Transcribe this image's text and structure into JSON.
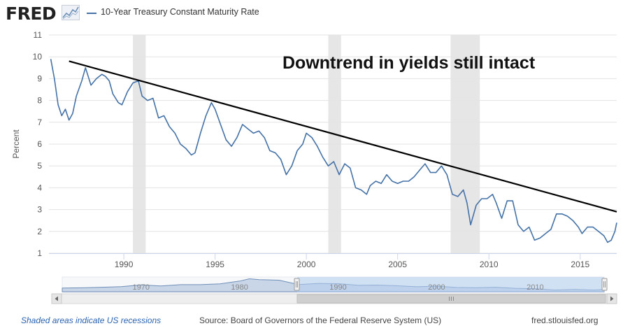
{
  "header": {
    "logo": "FRED",
    "legend_label": "10-Year Treasury Constant Maturity Rate",
    "series_color": "#4572a7"
  },
  "footer": {
    "recession_note": "Shaded areas indicate US recessions",
    "source": "Source: Board of Governors of the Federal Reserve System (US)",
    "site": "fred.stlouisfed.org"
  },
  "chart_data": {
    "type": "line",
    "title": "",
    "annotation": "Downtrend in yields still intact",
    "xlabel": "",
    "ylabel": "Percent",
    "xlim": [
      1985.9,
      2017.0
    ],
    "ylim": [
      1,
      11
    ],
    "grid": true,
    "y_ticks": [
      "1",
      "2",
      "3",
      "4",
      "5",
      "6",
      "7",
      "8",
      "9",
      "10",
      "11"
    ],
    "x_ticks": [
      "1990",
      "1995",
      "2000",
      "2005",
      "2010",
      "2015"
    ],
    "recessions": [
      [
        1990.5,
        1991.2
      ],
      [
        2001.2,
        2001.9
      ],
      [
        2007.9,
        2009.5
      ]
    ],
    "trendline": {
      "x": [
        1987.0,
        2017.0
      ],
      "y": [
        9.8,
        2.9
      ]
    },
    "series": [
      {
        "name": "10-Year Treasury Constant Maturity Rate",
        "x": [
          1986.0,
          1986.2,
          1986.4,
          1986.6,
          1986.8,
          1987.0,
          1987.2,
          1987.4,
          1987.7,
          1987.9,
          1988.2,
          1988.5,
          1988.8,
          1989.0,
          1989.2,
          1989.4,
          1989.7,
          1989.9,
          1990.2,
          1990.5,
          1990.8,
          1991.0,
          1991.3,
          1991.6,
          1991.9,
          1992.2,
          1992.5,
          1992.8,
          1993.1,
          1993.4,
          1993.7,
          1993.9,
          1994.2,
          1994.5,
          1994.8,
          1995.0,
          1995.3,
          1995.6,
          1995.9,
          1996.2,
          1996.5,
          1996.8,
          1997.1,
          1997.4,
          1997.7,
          1998.0,
          1998.3,
          1998.6,
          1998.9,
          1999.2,
          1999.5,
          1999.8,
          2000.0,
          2000.3,
          2000.6,
          2000.9,
          2001.2,
          2001.5,
          2001.8,
          2002.1,
          2002.4,
          2002.7,
          2003.0,
          2003.3,
          2003.5,
          2003.8,
          2004.1,
          2004.4,
          2004.7,
          2005.0,
          2005.3,
          2005.6,
          2005.9,
          2006.2,
          2006.5,
          2006.8,
          2007.1,
          2007.4,
          2007.7,
          2008.0,
          2008.3,
          2008.6,
          2008.8,
          2009.0,
          2009.3,
          2009.6,
          2009.9,
          2010.2,
          2010.4,
          2010.7,
          2011.0,
          2011.3,
          2011.6,
          2011.9,
          2012.2,
          2012.5,
          2012.8,
          2013.1,
          2013.4,
          2013.7,
          2014.0,
          2014.3,
          2014.6,
          2014.9,
          2015.1,
          2015.4,
          2015.7,
          2016.0,
          2016.3,
          2016.5,
          2016.7,
          2016.9,
          2017.0
        ],
        "values": [
          9.9,
          9.0,
          7.8,
          7.3,
          7.6,
          7.1,
          7.4,
          8.2,
          8.9,
          9.5,
          8.7,
          9.0,
          9.2,
          9.1,
          8.9,
          8.3,
          7.9,
          7.8,
          8.4,
          8.8,
          8.9,
          8.2,
          8.0,
          8.1,
          7.2,
          7.3,
          6.8,
          6.5,
          6.0,
          5.8,
          5.5,
          5.6,
          6.5,
          7.3,
          7.9,
          7.6,
          6.9,
          6.2,
          5.9,
          6.3,
          6.9,
          6.7,
          6.5,
          6.6,
          6.3,
          5.7,
          5.6,
          5.3,
          4.6,
          5.0,
          5.7,
          6.0,
          6.5,
          6.3,
          5.9,
          5.4,
          5.0,
          5.2,
          4.6,
          5.1,
          4.9,
          4.0,
          3.9,
          3.7,
          4.1,
          4.3,
          4.2,
          4.6,
          4.3,
          4.2,
          4.3,
          4.3,
          4.5,
          4.8,
          5.1,
          4.7,
          4.7,
          5.0,
          4.6,
          3.7,
          3.6,
          3.9,
          3.3,
          2.3,
          3.2,
          3.5,
          3.5,
          3.7,
          3.3,
          2.6,
          3.4,
          3.4,
          2.3,
          2.0,
          2.2,
          1.6,
          1.7,
          1.9,
          2.1,
          2.8,
          2.8,
          2.7,
          2.5,
          2.2,
          1.9,
          2.2,
          2.2,
          2.0,
          1.8,
          1.5,
          1.6,
          2.0,
          2.4
        ]
      }
    ]
  },
  "navigator": {
    "tick_labels": [
      "1970",
      "1980",
      "1990",
      "2000",
      "2010"
    ],
    "x": [
      1962,
      1964,
      1966,
      1968,
      1970,
      1972,
      1974,
      1976,
      1978,
      1980,
      1981,
      1982,
      1984,
      1986,
      1988,
      1990,
      1992,
      1994,
      1996,
      1998,
      2000,
      2002,
      2004,
      2006,
      2008,
      2010,
      2012,
      2014,
      2016,
      2017
    ],
    "values": [
      4.0,
      4.2,
      4.8,
      5.5,
      7.3,
      6.2,
      7.6,
      7.6,
      8.4,
      11.4,
      13.9,
      13.0,
      12.4,
      7.7,
      8.9,
      8.6,
      7.0,
      7.1,
      6.4,
      5.3,
      6.0,
      4.6,
      4.3,
      4.8,
      3.7,
      3.2,
      1.8,
      2.5,
      1.8,
      2.4
    ]
  }
}
